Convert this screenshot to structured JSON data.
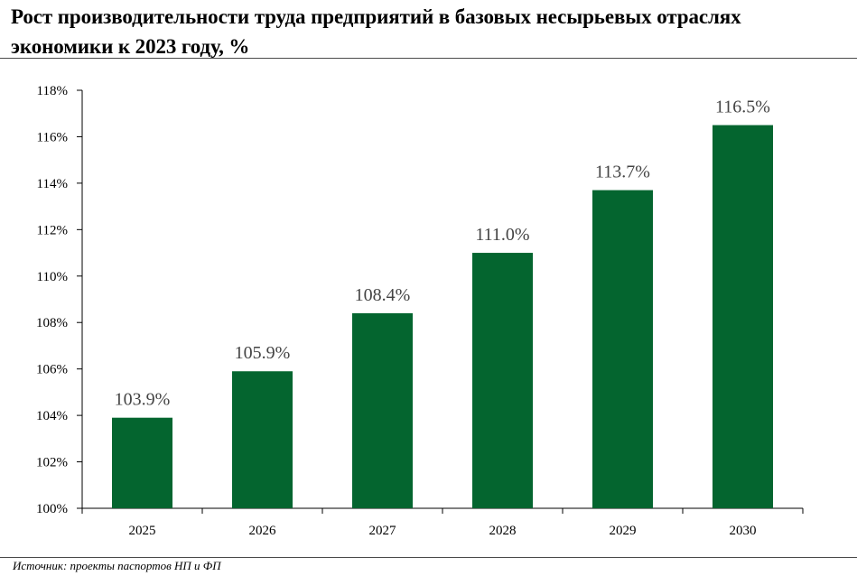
{
  "title": "Рост производительности труда предприятий в базовых несырьевых отраслях экономики к 2023 году, %",
  "source": "Источник: проекты паспортов НП и ФП",
  "colors": {
    "bar": "#04652f",
    "axis": "#000000",
    "label": "#444444"
  },
  "chart_data": {
    "type": "bar",
    "categories": [
      "2025",
      "2026",
      "2027",
      "2028",
      "2029",
      "2030"
    ],
    "values": [
      103.9,
      105.9,
      108.4,
      111.0,
      113.7,
      116.5
    ],
    "data_labels": [
      "103.9%",
      "105.9%",
      "108.4%",
      "111.0%",
      "113.7%",
      "116.5%"
    ],
    "ylim": [
      100,
      118
    ],
    "yticks": [
      100,
      102,
      104,
      106,
      108,
      110,
      112,
      114,
      116,
      118
    ],
    "ytick_labels": [
      "100%",
      "102%",
      "104%",
      "106%",
      "108%",
      "110%",
      "112%",
      "114%",
      "116%",
      "118%"
    ],
    "xlabel": "",
    "ylabel": "",
    "grid": false,
    "legend": "none"
  }
}
